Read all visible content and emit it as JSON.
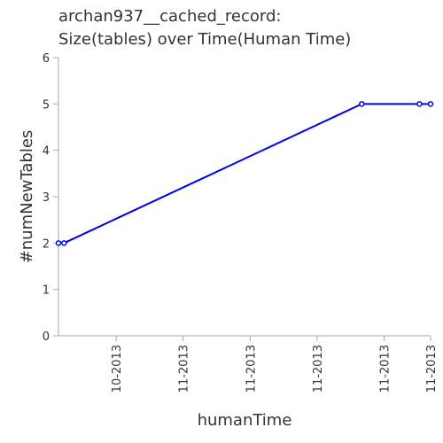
{
  "chart_data": {
    "type": "line",
    "title_lines": [
      "archan937__cached_record:",
      "Size(tables) over Time(Human Time)"
    ],
    "xlabel": "humanTime",
    "ylabel": "#numNewTables",
    "x_tick_labels": [
      "10-2013",
      "11-2013",
      "11-2013",
      "11-2013",
      "11-2013",
      "11-2013"
    ],
    "x_tick_pos": [
      0.155,
      0.335,
      0.515,
      0.695,
      0.875,
      1.0
    ],
    "y_ticks": [
      0,
      1,
      2,
      3,
      4,
      5,
      6
    ],
    "ylim": [
      0,
      6
    ],
    "xlim": [
      0,
      1
    ],
    "grid": false,
    "color": "#0000ee",
    "series": [
      {
        "x": [
          0.0,
          0.015,
          0.815,
          0.97,
          1.0
        ],
        "values": [
          2,
          2,
          5,
          5,
          5
        ]
      }
    ]
  }
}
